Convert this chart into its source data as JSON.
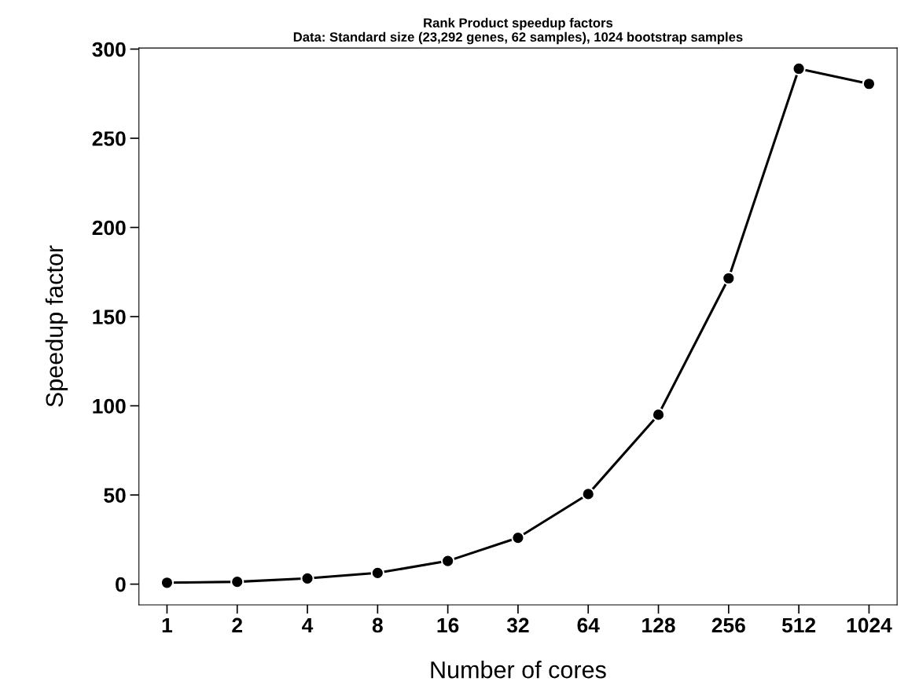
{
  "chart_data": {
    "type": "line",
    "title": "Rank Product speedup factors\nData: Standard size (23,292 genes, 62 samples), 1024 bootstrap samples",
    "xlabel": "Number of cores",
    "ylabel": "Speedup factor",
    "categories": [
      "1",
      "2",
      "4",
      "8",
      "16",
      "32",
      "64",
      "128",
      "256",
      "512",
      "1024"
    ],
    "series": [
      {
        "color": "#000000",
        "values": [
          0.8,
          1.3,
          3.2,
          6.3,
          13,
          26,
          50.5,
          95,
          171.5,
          289,
          280.5
        ]
      }
    ],
    "ylim": [
      -11.6,
      300.6
    ],
    "yticks": [
      0,
      50,
      100,
      150,
      200,
      250,
      300
    ],
    "marker": "circle",
    "line_style": "solid",
    "grid": false,
    "legend": false
  }
}
